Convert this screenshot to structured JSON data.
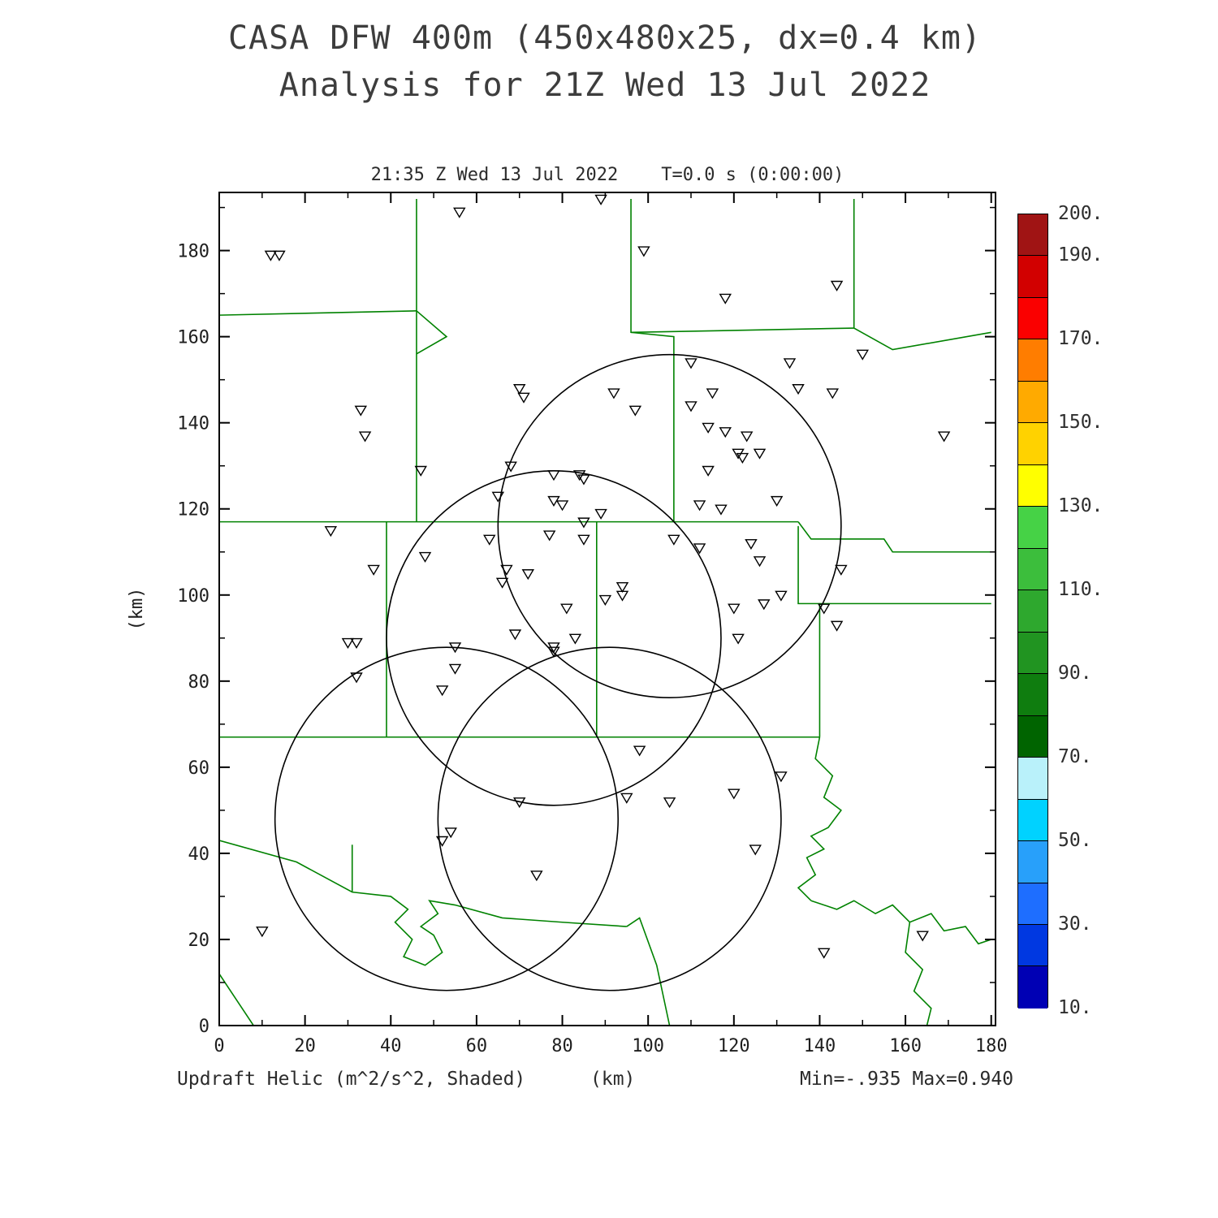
{
  "title": {
    "line1": "CASA DFW 400m (450x480x25, dx=0.4 km)",
    "line2": "Analysis for 21Z Wed 13 Jul 2022"
  },
  "subtitle": "21:35 Z Wed 13 Jul 2022    T=0.0 s (0:00:00)",
  "footer": {
    "left": "Updraft Helic (m^2/s^2, Shaded)",
    "center": "(km)",
    "right": "Min=-.935 Max=0.940"
  },
  "axes": {
    "x_label": "(km)",
    "y_label": "(km)",
    "x_ticks": [
      0,
      20,
      40,
      60,
      80,
      100,
      120,
      140,
      160,
      180
    ],
    "y_ticks": [
      0,
      20,
      40,
      60,
      80,
      100,
      120,
      140,
      160,
      180
    ],
    "x_range": [
      0,
      181
    ],
    "y_range": [
      0,
      193.5
    ]
  },
  "colors": {
    "county_line": "#008200",
    "frame": "#000000",
    "marker": "#000000",
    "circle": "#000000"
  },
  "chart_data": {
    "type": "scatter",
    "title": "CASA DFW 400m (450x480x25, dx=0.4 km) Analysis for 21Z Wed 13 Jul 2022",
    "field": "Updraft Helicity (m^2/s^2, Shaded)",
    "valid_time": "21:35 Z Wed 13 Jul 2022",
    "forecast_time": "T=0.0 s (0:00:00)",
    "min": -0.935,
    "max": 0.94,
    "xlabel": "(km)",
    "ylabel": "(km)",
    "xlim": [
      0,
      181
    ],
    "ylim": [
      0,
      193.5
    ],
    "markers": [
      [
        89,
        192
      ],
      [
        56,
        189
      ],
      [
        12,
        179
      ],
      [
        14,
        179
      ],
      [
        99,
        180
      ],
      [
        118,
        169
      ],
      [
        144,
        172
      ],
      [
        150,
        156
      ],
      [
        110,
        154
      ],
      [
        133,
        154
      ],
      [
        115,
        147
      ],
      [
        135,
        148
      ],
      [
        143,
        147
      ],
      [
        92,
        147
      ],
      [
        70,
        148
      ],
      [
        71,
        146
      ],
      [
        97,
        143
      ],
      [
        110,
        144
      ],
      [
        114,
        139
      ],
      [
        118,
        138
      ],
      [
        123,
        137
      ],
      [
        169,
        137
      ],
      [
        121,
        133
      ],
      [
        122,
        132
      ],
      [
        126,
        133
      ],
      [
        33,
        143
      ],
      [
        34,
        137
      ],
      [
        47,
        129
      ],
      [
        68,
        130
      ],
      [
        114,
        129
      ],
      [
        78,
        128
      ],
      [
        84,
        128
      ],
      [
        85,
        127
      ],
      [
        65,
        123
      ],
      [
        78,
        122
      ],
      [
        112,
        121
      ],
      [
        117,
        120
      ],
      [
        130,
        122
      ],
      [
        80,
        121
      ],
      [
        89,
        119
      ],
      [
        85,
        117
      ],
      [
        26,
        115
      ],
      [
        77,
        114
      ],
      [
        85,
        113
      ],
      [
        63,
        113
      ],
      [
        106,
        113
      ],
      [
        124,
        112
      ],
      [
        48,
        109
      ],
      [
        112,
        111
      ],
      [
        126,
        108
      ],
      [
        36,
        106
      ],
      [
        67,
        106
      ],
      [
        72,
        105
      ],
      [
        66,
        103
      ],
      [
        145,
        106
      ],
      [
        94,
        102
      ],
      [
        94,
        100
      ],
      [
        90,
        99
      ],
      [
        131,
        100
      ],
      [
        141,
        97
      ],
      [
        81,
        97
      ],
      [
        120,
        97
      ],
      [
        127,
        98
      ],
      [
        30,
        89
      ],
      [
        32,
        89
      ],
      [
        69,
        91
      ],
      [
        144,
        93
      ],
      [
        55,
        88
      ],
      [
        78,
        88
      ],
      [
        78,
        87
      ],
      [
        83,
        90
      ],
      [
        121,
        90
      ],
      [
        32,
        81
      ],
      [
        55,
        83
      ],
      [
        52,
        78
      ],
      [
        98,
        64
      ],
      [
        131,
        58
      ],
      [
        95,
        53
      ],
      [
        70,
        52
      ],
      [
        105,
        52
      ],
      [
        120,
        54
      ],
      [
        54,
        45
      ],
      [
        52,
        43
      ],
      [
        74,
        35
      ],
      [
        125,
        41
      ],
      [
        10,
        22
      ],
      [
        141,
        17
      ],
      [
        164,
        21
      ]
    ],
    "radar_circles": [
      {
        "cx": 105,
        "cy": 116,
        "r": 40
      },
      {
        "cx": 78,
        "cy": 90,
        "r": 39
      },
      {
        "cx": 53,
        "cy": 48,
        "r": 40
      },
      {
        "cx": 91,
        "cy": 48,
        "r": 40
      }
    ],
    "county_lines": [
      [
        [
          0,
          165
        ],
        [
          46,
          166
        ]
      ],
      [
        [
          46,
          192
        ],
        [
          46,
          117
        ]
      ],
      [
        [
          46,
          166
        ],
        [
          53,
          160
        ],
        [
          46,
          156
        ]
      ],
      [
        [
          96,
          192
        ],
        [
          96,
          161
        ],
        [
          106,
          160
        ],
        [
          106,
          117
        ]
      ],
      [
        [
          148,
          192
        ],
        [
          148,
          162
        ]
      ],
      [
        [
          96,
          161
        ],
        [
          148,
          162
        ]
      ],
      [
        [
          148,
          162
        ],
        [
          157,
          157
        ],
        [
          180,
          161
        ]
      ],
      [
        [
          0,
          117
        ],
        [
          135,
          117
        ]
      ],
      [
        [
          135,
          117
        ],
        [
          138,
          113
        ],
        [
          155,
          113
        ],
        [
          157,
          110
        ],
        [
          180,
          110
        ]
      ],
      [
        [
          39,
          117
        ],
        [
          39,
          67
        ]
      ],
      [
        [
          88,
          117
        ],
        [
          88,
          67
        ]
      ],
      [
        [
          135,
          116
        ],
        [
          135,
          98
        ],
        [
          140,
          98
        ],
        [
          140,
          67
        ]
      ],
      [
        [
          140,
          98
        ],
        [
          180,
          98
        ]
      ],
      [
        [
          0,
          67
        ],
        [
          140,
          67
        ]
      ],
      [
        [
          140,
          67
        ],
        [
          139,
          62
        ],
        [
          143,
          58
        ],
        [
          141,
          53
        ],
        [
          145,
          50
        ],
        [
          142,
          46
        ],
        [
          138,
          44
        ],
        [
          141,
          41
        ],
        [
          137,
          39
        ],
        [
          139,
          35
        ],
        [
          135,
          32
        ],
        [
          138,
          29
        ]
      ],
      [
        [
          138,
          29
        ],
        [
          144,
          27
        ],
        [
          148,
          29
        ],
        [
          153,
          26
        ],
        [
          157,
          28
        ],
        [
          161,
          24
        ],
        [
          166,
          26
        ],
        [
          169,
          22
        ],
        [
          174,
          23
        ],
        [
          177,
          19
        ],
        [
          180,
          20
        ]
      ],
      [
        [
          161,
          24
        ],
        [
          160,
          17
        ],
        [
          164,
          13
        ],
        [
          162,
          8
        ],
        [
          166,
          4
        ],
        [
          165,
          0
        ]
      ],
      [
        [
          0,
          43
        ],
        [
          18,
          38
        ],
        [
          31,
          31
        ],
        [
          40,
          30
        ],
        [
          44,
          27
        ],
        [
          41,
          24
        ],
        [
          45,
          20
        ],
        [
          43,
          16
        ],
        [
          48,
          14
        ],
        [
          52,
          17
        ],
        [
          50,
          21
        ],
        [
          47,
          23
        ],
        [
          51,
          26
        ],
        [
          49,
          29
        ],
        [
          55,
          28
        ],
        [
          66,
          25
        ],
        [
          80,
          24
        ],
        [
          95,
          23
        ]
      ],
      [
        [
          31,
          42
        ],
        [
          31,
          31
        ]
      ],
      [
        [
          95,
          23
        ],
        [
          98,
          25
        ],
        [
          102,
          14
        ],
        [
          105,
          0
        ]
      ],
      [
        [
          0,
          12
        ],
        [
          4,
          6
        ],
        [
          8,
          0
        ]
      ]
    ],
    "colorbar": {
      "min": 10,
      "max": 200,
      "tick_labels": [
        "200.",
        "190.",
        "170.",
        "150.",
        "130.",
        "110.",
        "90.",
        "70.",
        "50.",
        "30.",
        "10."
      ],
      "tick_values": [
        200,
        190,
        170,
        150,
        130,
        110,
        90,
        70,
        50,
        30,
        10
      ],
      "segments": [
        {
          "from": 10,
          "to": 20,
          "color": "#0000b4"
        },
        {
          "from": 20,
          "to": 30,
          "color": "#0038e1"
        },
        {
          "from": 30,
          "to": 40,
          "color": "#1e6eff"
        },
        {
          "from": 40,
          "to": 50,
          "color": "#28a0fa"
        },
        {
          "from": 50,
          "to": 60,
          "color": "#00d2ff"
        },
        {
          "from": 60,
          "to": 70,
          "color": "#b9f1fa"
        },
        {
          "from": 70,
          "to": 80,
          "color": "#006400"
        },
        {
          "from": 80,
          "to": 90,
          "color": "#0f7d0f"
        },
        {
          "from": 90,
          "to": 100,
          "color": "#219421"
        },
        {
          "from": 100,
          "to": 110,
          "color": "#2ea82e"
        },
        {
          "from": 110,
          "to": 120,
          "color": "#3cbe3c"
        },
        {
          "from": 120,
          "to": 130,
          "color": "#46d246"
        },
        {
          "from": 130,
          "to": 140,
          "color": "#ffff00"
        },
        {
          "from": 140,
          "to": 150,
          "color": "#ffd200"
        },
        {
          "from": 150,
          "to": 160,
          "color": "#ffaa00"
        },
        {
          "from": 160,
          "to": 170,
          "color": "#ff7d00"
        },
        {
          "from": 170,
          "to": 180,
          "color": "#fa0000"
        },
        {
          "from": 180,
          "to": 190,
          "color": "#d20000"
        },
        {
          "from": 190,
          "to": 200,
          "color": "#a01414"
        }
      ]
    }
  }
}
